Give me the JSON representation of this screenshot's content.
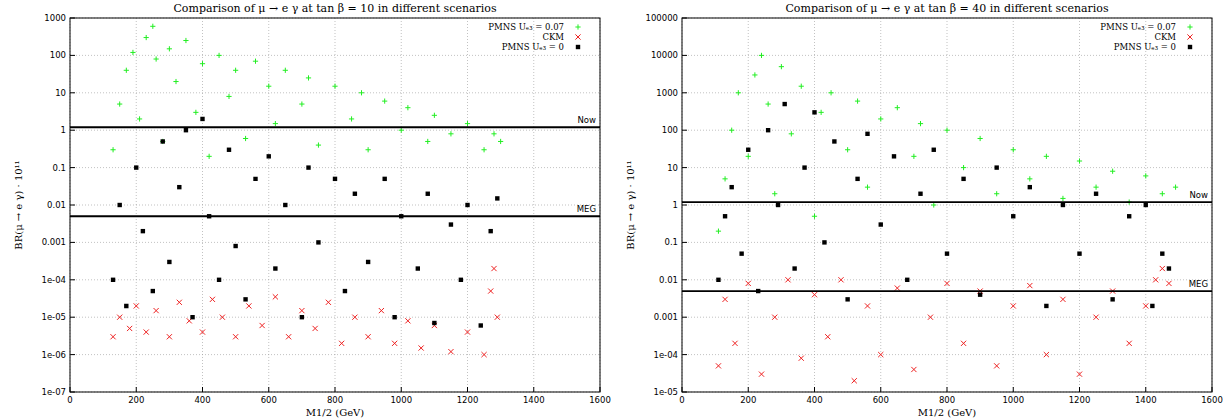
{
  "chart_data": [
    {
      "type": "scatter",
      "title": "Comparison of μ → e γ at tan β = 10 in different scenarios",
      "x_label": "M1/2 (GeV)",
      "y_label": "BR(μ → e γ) · 10¹¹",
      "log": "y",
      "grid": true,
      "legend": "top-right",
      "xlim": [
        0,
        1600
      ],
      "xticks": [
        0,
        200,
        400,
        600,
        800,
        1000,
        1200,
        1400,
        1600
      ],
      "ylim": [
        1e-07,
        1000
      ],
      "yticks": [
        {
          "value": 1e-07,
          "label": "1e-07"
        },
        {
          "value": 1e-06,
          "label": "1e-06"
        },
        {
          "value": 1e-05,
          "label": "1e-05"
        },
        {
          "value": 0.0001,
          "label": "1e-04"
        },
        0.001,
        0.01,
        0.1,
        1,
        10,
        100,
        1000
      ],
      "annotations": [
        {
          "text": "Now",
          "y": 1.2
        },
        {
          "text": "MEG",
          "y": 0.005
        }
      ],
      "series": [
        {
          "name": "PMNS Uₑ₃ = 0.07",
          "color": "#22ee22",
          "marker": "plus",
          "x": [
            130,
            150,
            170,
            190,
            210,
            230,
            250,
            260,
            280,
            300,
            320,
            350,
            380,
            400,
            420,
            450,
            480,
            500,
            530,
            560,
            600,
            620,
            650,
            700,
            720,
            750,
            800,
            850,
            880,
            900,
            950,
            1000,
            1020,
            1080,
            1100,
            1150,
            1200,
            1250,
            1280,
            1300
          ],
          "values": [
            0.3,
            5,
            40,
            120,
            2,
            300,
            600,
            80,
            0.5,
            150,
            20,
            250,
            3,
            60,
            0.2,
            100,
            8,
            40,
            0.6,
            70,
            15,
            1.5,
            40,
            5,
            25,
            0.4,
            15,
            2,
            10,
            0.3,
            6,
            1,
            4,
            0.5,
            2.5,
            0.8,
            1.5,
            0.3,
            0.8,
            0.5
          ]
        },
        {
          "name": "CKM",
          "color": "#ee2222",
          "marker": "cross",
          "x": [
            130,
            150,
            180,
            200,
            230,
            260,
            300,
            330,
            360,
            400,
            430,
            460,
            500,
            540,
            580,
            620,
            660,
            700,
            740,
            780,
            820,
            860,
            900,
            940,
            980,
            1020,
            1060,
            1100,
            1150,
            1200,
            1250,
            1270,
            1280,
            1290
          ],
          "values": [
            3e-06,
            1e-05,
            5e-06,
            2e-05,
            4e-06,
            1.5e-05,
            3e-06,
            2.5e-05,
            8e-06,
            4e-06,
            3e-05,
            1e-05,
            3e-06,
            2e-05,
            6e-06,
            3.5e-05,
            3e-06,
            1.5e-05,
            5e-06,
            2.5e-05,
            2e-06,
            1e-05,
            3e-06,
            1.5e-05,
            2e-06,
            8e-06,
            1.5e-06,
            6e-06,
            1.2e-06,
            4e-06,
            1e-06,
            5e-05,
            0.0002,
            1e-05
          ]
        },
        {
          "name": "PMNS Uₑ₃ = 0",
          "color": "#000000",
          "marker": "square",
          "x": [
            130,
            150,
            170,
            200,
            220,
            250,
            280,
            300,
            330,
            350,
            370,
            400,
            420,
            450,
            480,
            500,
            530,
            560,
            600,
            620,
            650,
            700,
            720,
            750,
            800,
            830,
            860,
            900,
            950,
            980,
            1000,
            1050,
            1080,
            1100,
            1150,
            1180,
            1200,
            1240,
            1270,
            1290
          ],
          "values": [
            0.0001,
            0.01,
            2e-05,
            0.1,
            0.002,
            5e-05,
            0.5,
            0.0003,
            0.03,
            1,
            1e-05,
            2,
            0.005,
            0.0001,
            0.3,
            0.0008,
            3e-05,
            0.05,
            0.2,
            0.0002,
            0.01,
            1e-05,
            0.1,
            0.001,
            0.05,
            5e-05,
            0.02,
            0.0003,
            0.05,
            1e-05,
            0.005,
            0.0002,
            0.02,
            7e-06,
            0.003,
            0.0001,
            0.01,
            6e-06,
            0.002,
            0.015
          ]
        }
      ]
    },
    {
      "type": "scatter",
      "title": "Comparison of μ → e γ at tan β = 40 in different scenarios",
      "x_label": "M1/2 (GeV)",
      "y_label": "BR(μ → e γ) · 10¹¹",
      "log": "y",
      "grid": true,
      "legend": "top-right",
      "xlim": [
        0,
        1600
      ],
      "xticks": [
        0,
        200,
        400,
        600,
        800,
        1000,
        1200,
        1400,
        1600
      ],
      "ylim": [
        1e-05,
        100000
      ],
      "yticks": [
        {
          "value": 1e-05,
          "label": "1e-05"
        },
        {
          "value": 0.0001,
          "label": "1e-04"
        },
        0.001,
        0.01,
        0.1,
        1,
        10,
        100,
        1000,
        10000,
        100000
      ],
      "annotations": [
        {
          "text": "Now",
          "y": 1.2
        },
        {
          "text": "MEG",
          "y": 0.005
        }
      ],
      "series": [
        {
          "name": "PMNS Uₑ₃ = 0.07",
          "color": "#22ee22",
          "marker": "plus",
          "x": [
            110,
            130,
            150,
            170,
            200,
            220,
            240,
            260,
            280,
            300,
            330,
            360,
            400,
            420,
            450,
            500,
            530,
            560,
            600,
            650,
            700,
            720,
            760,
            800,
            850,
            900,
            950,
            1000,
            1050,
            1100,
            1150,
            1200,
            1250,
            1300,
            1350,
            1400,
            1450,
            1490
          ],
          "values": [
            0.2,
            5,
            100,
            1000,
            20,
            3000,
            10000,
            500,
            2,
            5000,
            80,
            1500,
            0.5,
            300,
            1000,
            30,
            600,
            3,
            200,
            400,
            20,
            150,
            1,
            100,
            10,
            60,
            2,
            30,
            5,
            20,
            1.5,
            15,
            3,
            8,
            1.2,
            6,
            2,
            3
          ]
        },
        {
          "name": "CKM",
          "color": "#ee2222",
          "marker": "cross",
          "x": [
            110,
            130,
            160,
            200,
            240,
            280,
            320,
            360,
            400,
            440,
            480,
            520,
            560,
            600,
            650,
            700,
            750,
            800,
            850,
            900,
            950,
            1000,
            1050,
            1100,
            1150,
            1200,
            1250,
            1300,
            1350,
            1400,
            1430,
            1450,
            1470
          ],
          "values": [
            5e-05,
            0.003,
            0.0002,
            0.008,
            3e-05,
            0.001,
            0.01,
            8e-05,
            0.004,
            0.0003,
            0.01,
            2e-05,
            0.002,
            0.0001,
            0.006,
            4e-05,
            0.001,
            0.008,
            0.0002,
            0.005,
            5e-05,
            0.002,
            0.007,
            0.0001,
            0.003,
            3e-05,
            0.001,
            0.005,
            0.0002,
            0.002,
            0.01,
            0.02,
            0.008
          ]
        },
        {
          "name": "PMNS Uₑ₃ = 0",
          "color": "#000000",
          "marker": "square",
          "x": [
            110,
            130,
            150,
            180,
            200,
            230,
            260,
            290,
            310,
            340,
            370,
            400,
            430,
            460,
            500,
            530,
            560,
            600,
            640,
            680,
            720,
            760,
            800,
            850,
            900,
            950,
            1000,
            1050,
            1100,
            1150,
            1200,
            1250,
            1300,
            1350,
            1400,
            1420,
            1450,
            1470
          ],
          "values": [
            0.01,
            0.5,
            3,
            0.05,
            30,
            0.005,
            100,
            1,
            500,
            0.02,
            10,
            300,
            0.1,
            50,
            0.003,
            5,
            80,
            0.3,
            20,
            0.01,
            2,
            30,
            0.05,
            5,
            0.004,
            10,
            0.5,
            3,
            0.002,
            1,
            0.05,
            2,
            0.003,
            0.5,
            1,
            0.002,
            0.05,
            0.02
          ]
        }
      ]
    }
  ]
}
